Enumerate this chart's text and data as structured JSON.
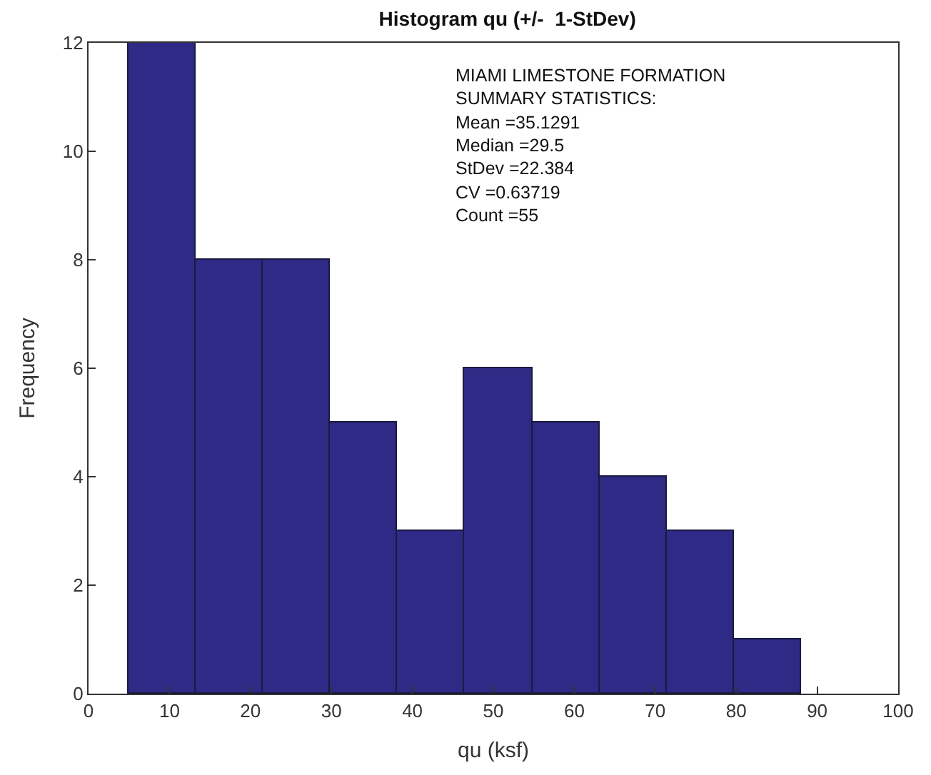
{
  "chart_data": {
    "type": "histogram",
    "title": "Histogram qu (+/-  1-StDev)",
    "xlabel": "qu (ksf)",
    "ylabel": "Frequency",
    "bins": [
      4.9,
      13.2,
      21.5,
      29.8,
      38.1,
      46.4,
      54.8,
      63.1,
      71.4,
      79.7,
      88.0
    ],
    "values": [
      12,
      8,
      8,
      5,
      3,
      6,
      5,
      4,
      3,
      1
    ],
    "color": "#2e2a85",
    "xlim": [
      0,
      100
    ],
    "xticks": [
      0,
      10,
      20,
      30,
      40,
      50,
      60,
      70,
      80,
      90,
      100
    ],
    "ylim": [
      0,
      12
    ],
    "yticks": [
      0,
      2,
      4,
      6,
      8,
      10,
      12
    ],
    "annotations": [
      "MIAMI LIMESTONE FORMATION",
      "SUMMARY STATISTICS:",
      "Mean =35.1291",
      "Median =29.5",
      "StDev =22.384",
      "CV =0.63719",
      "Count =55"
    ]
  }
}
